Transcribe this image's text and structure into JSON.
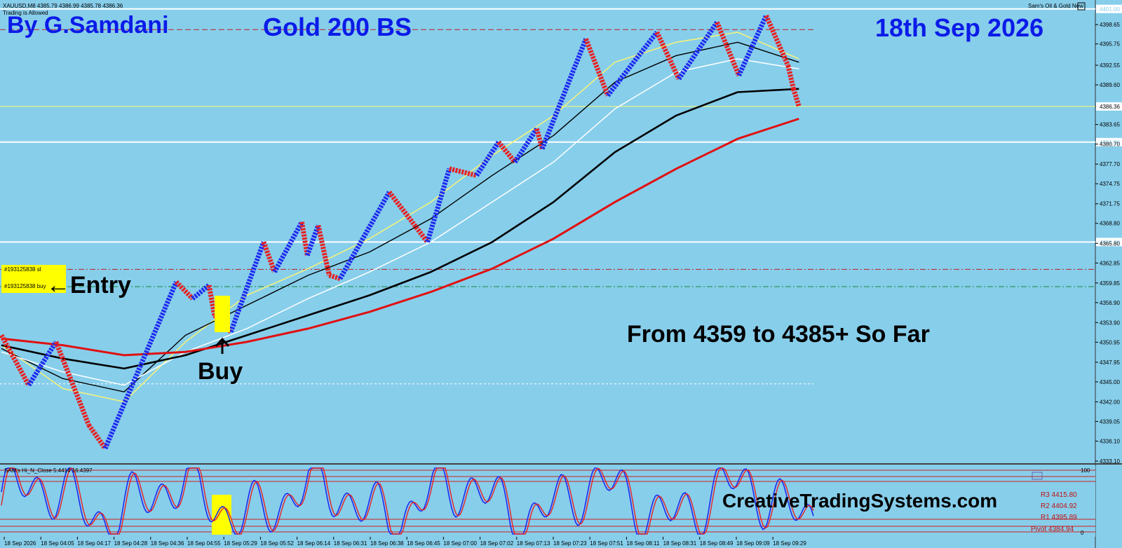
{
  "header": {
    "symbol_line": "XAUUSD,M8  4385.79 4386.99 4385.78 4386.36",
    "trading_status": "Trading is Allowed",
    "indicator_name": "Sam's Oil & Gold New"
  },
  "overlays": {
    "author": "By G.Samdani",
    "strategy": "Gold 200 BS",
    "date": "18th Sep 2026",
    "result": "From 4359 to 4385+ So Far",
    "entry_label": "←Entry",
    "buy_label": "Buy",
    "website": "CreativeTradingSystems.com"
  },
  "orders": {
    "sl_label": "#193125838 sl",
    "buy_label": "#193125838 buy"
  },
  "subwindow": {
    "title": "SAM's Hi_N_Close 5.4414 16.4397",
    "pivot_labels": [
      "R3  4415.80",
      "R2  4404.92",
      "R1  4395.89",
      "Pivot  4384.94"
    ],
    "scale_top": "100",
    "scale_bottom": "0"
  },
  "colors": {
    "background": "#87CEEB",
    "up_bricks": "#1E2AF0",
    "down_bricks": "#E82020",
    "ma_yellow": "#F2F27A",
    "ma_white": "#FFFFFF",
    "ma_black": "#000000",
    "ma_red": "#E01010",
    "title_text": "#0B1BE8"
  },
  "chart_data": {
    "type": "line",
    "title": "Gold 200 BS",
    "ylim": [
      4333.1,
      4401.5
    ],
    "y_ticks": [
      "4398.65",
      "4395.75",
      "4392.55",
      "4389.60",
      "4386.36",
      "4383.65",
      "4380.70",
      "4377.70",
      "4374.75",
      "4371.75",
      "4368.80",
      "4365.80",
      "4362.85",
      "4359.85",
      "4356.90",
      "4353.90",
      "4350.95",
      "4347.95",
      "4345.00",
      "4342.00",
      "4339.05",
      "4336.10",
      "4333.10"
    ],
    "current_price": "4386.36",
    "x_tick_labels": [
      "18 Sep 2026",
      "18 Sep 04:05",
      "18 Sep 04:17",
      "18 Sep 04:28",
      "18 Sep 04:36",
      "18 Sep 04:55",
      "18 Sep 05:29",
      "18 Sep 05:52",
      "18 Sep 06:14",
      "18 Sep 06:31",
      "18 Sep 06:38",
      "18 Sep 06:45",
      "18 Sep 07:00",
      "18 Sep 07:02",
      "18 Sep 07:13",
      "18 Sep 07:23",
      "18 Sep 07:51",
      "18 Sep 08:11",
      "18 Sep 08:31",
      "18 Sep 08:49",
      "18 Sep 09:09",
      "18 Sep 09:29"
    ],
    "horizontal_levels": [
      {
        "price": 4401.0,
        "style": "solid-white",
        "label": "4401.00"
      },
      {
        "price": 4397.9,
        "style": "dashed-red"
      },
      {
        "price": 4386.36,
        "style": "solid-yellow"
      },
      {
        "price": 4381.0,
        "style": "solid-white",
        "label": "4381.00"
      },
      {
        "price": 4366.0,
        "style": "solid-white",
        "label": "4366.00"
      },
      {
        "price": 4361.9,
        "style": "dashdot-red"
      },
      {
        "price": 4359.3,
        "style": "dashdot-green"
      },
      {
        "price": 4344.7,
        "style": "dotted-white"
      }
    ],
    "renko_path": [
      [
        0,
        4352.0
      ],
      [
        0.025,
        4344.5
      ],
      [
        0.05,
        4351.0
      ],
      [
        0.08,
        4338.5
      ],
      [
        0.095,
        4335.0
      ],
      [
        0.16,
        4360.0
      ],
      [
        0.175,
        4357.5
      ],
      [
        0.19,
        4359.5
      ],
      [
        0.195,
        4355.0
      ],
      [
        0.21,
        4352.5
      ],
      [
        0.24,
        4366.0
      ],
      [
        0.25,
        4361.5
      ],
      [
        0.275,
        4369.0
      ],
      [
        0.28,
        4364.0
      ],
      [
        0.29,
        4368.5
      ],
      [
        0.3,
        4361.0
      ],
      [
        0.31,
        4360.5
      ],
      [
        0.355,
        4373.5
      ],
      [
        0.39,
        4366.0
      ],
      [
        0.41,
        4377.0
      ],
      [
        0.435,
        4376.0
      ],
      [
        0.455,
        4381.0
      ],
      [
        0.47,
        4378.0
      ],
      [
        0.49,
        4383.0
      ],
      [
        0.495,
        4380.0
      ],
      [
        0.535,
        4396.5
      ],
      [
        0.555,
        4388.0
      ],
      [
        0.6,
        4397.5
      ],
      [
        0.62,
        4390.5
      ],
      [
        0.655,
        4399.0
      ],
      [
        0.675,
        4391.0
      ],
      [
        0.7,
        4400.0
      ],
      [
        0.72,
        4392.5
      ],
      [
        0.725,
        4389.0
      ],
      [
        0.73,
        4386.36
      ]
    ],
    "ma_series": [
      {
        "color": "yellow",
        "values": [
          4350.5,
          4344.0,
          4342.0,
          4351.0,
          4358.0,
          4362.0,
          4366.5,
          4372.0,
          4379.0,
          4385.0,
          4393.0,
          4396.0,
          4397.5,
          4393.5
        ]
      },
      {
        "color": "black-thin",
        "values": [
          4350.0,
          4345.5,
          4343.5,
          4352.0,
          4356.5,
          4361.0,
          4364.5,
          4369.5,
          4376.0,
          4382.0,
          4390.0,
          4394.0,
          4396.0,
          4393.0
        ]
      },
      {
        "color": "white",
        "values": [
          4349.5,
          4346.5,
          4344.5,
          4349.5,
          4353.0,
          4357.5,
          4361.5,
          4366.0,
          4372.0,
          4378.0,
          4386.0,
          4391.5,
          4393.5,
          4392.0
        ]
      },
      {
        "color": "black-thick",
        "values": [
          4350.5,
          4348.5,
          4347.0,
          4349.0,
          4352.0,
          4355.0,
          4358.0,
          4361.5,
          4366.0,
          4372.0,
          4379.5,
          4385.0,
          4388.5,
          4389.0
        ]
      },
      {
        "color": "red",
        "values": [
          4351.5,
          4350.5,
          4349.0,
          4349.5,
          4351.0,
          4353.0,
          4355.5,
          4358.5,
          4362.0,
          4366.5,
          4372.0,
          4377.0,
          4381.5,
          4384.5
        ]
      }
    ]
  }
}
